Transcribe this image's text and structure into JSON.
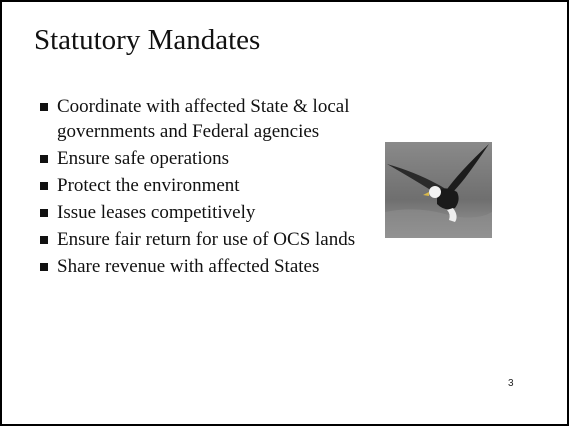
{
  "slide": {
    "title": "Statutory Mandates",
    "bullets": [
      "Coordinate with affected State & local governments and Federal agencies",
      "Ensure safe operations",
      "Protect the environment",
      "Issue leases competitively",
      "Ensure fair return for use of OCS lands",
      "Share revenue with affected States"
    ],
    "page_number": "3"
  }
}
